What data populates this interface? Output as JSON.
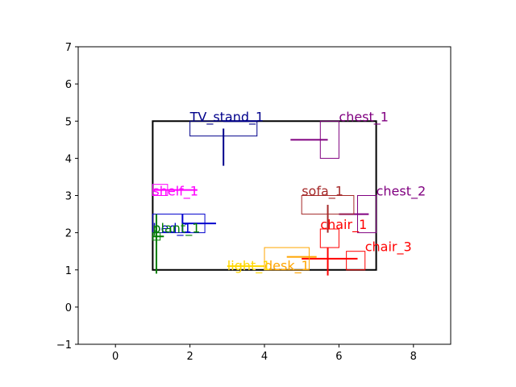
{
  "chart_data": {
    "type": "floor-plan",
    "title": "",
    "xlabel": "",
    "ylabel": "",
    "xlim": [
      -1,
      9
    ],
    "ylim": [
      -1,
      7
    ],
    "xticks": [
      0,
      2,
      4,
      6,
      8
    ],
    "yticks": [
      -1,
      0,
      1,
      2,
      3,
      4,
      5,
      6,
      7
    ],
    "grid": false,
    "room": {
      "x0": 1,
      "y0": 1,
      "x1": 7,
      "y1": 5,
      "color": "#000000"
    },
    "objects": [
      {
        "name": "TV_stand_1",
        "label": "TV_stand_1",
        "color": "#00008b",
        "rect": [
          2.0,
          4.6,
          3.8,
          5.0
        ],
        "hline": [
          2.9,
          3.8,
          5.0
        ],
        "vline": [
          2.9,
          3.8,
          4.8
        ],
        "label_xy": [
          2.0,
          5.0
        ]
      },
      {
        "name": "chest_1",
        "label": "chest_1",
        "color": "#800080",
        "rect": [
          5.5,
          4.0,
          6.0,
          5.0
        ],
        "hline": [
          4.7,
          5.7,
          4.5
        ],
        "vline": null,
        "label_xy": [
          6.0,
          5.0
        ]
      },
      {
        "name": "chest_2",
        "label": "chest_2",
        "color": "#800080",
        "rect": [
          6.5,
          2.0,
          7.0,
          3.0
        ],
        "hline": [
          6.0,
          6.8,
          2.5
        ],
        "vline": null,
        "label_xy": [
          7.0,
          3.0
        ]
      },
      {
        "name": "sofa_1",
        "label": "sofa_1",
        "color": "#a52a2a",
        "rect": [
          5.0,
          2.5,
          6.4,
          3.0
        ],
        "hline": null,
        "vline": [
          5.7,
          2.0,
          2.75
        ],
        "label_xy": [
          5.0,
          3.0
        ]
      },
      {
        "name": "shelf_1",
        "label": "shelf_1",
        "color": "#ff00ff",
        "rect": [
          1.0,
          3.0,
          1.4,
          3.3
        ],
        "hline": [
          1.0,
          2.2,
          3.15
        ],
        "vline": null,
        "label_xy": [
          1.0,
          3.0
        ]
      },
      {
        "name": "bed_1",
        "label": "bed_1",
        "color": "#0000cd",
        "rect": [
          1.0,
          2.0,
          2.4,
          2.5
        ],
        "hline": [
          1.8,
          2.7,
          2.25
        ],
        "vline": [
          1.8,
          2.0,
          2.5
        ],
        "label_xy": [
          1.0,
          2.0
        ]
      },
      {
        "name": "plant_1",
        "label": "plant_1",
        "color": "#008000",
        "rect": [
          1.0,
          1.8,
          1.2,
          2.0
        ],
        "hline": [
          1.0,
          1.3,
          1.9
        ],
        "vline": [
          1.1,
          0.9,
          2.5
        ],
        "label_xy": [
          1.0,
          2.0
        ]
      },
      {
        "name": "chair_1",
        "label": "chair_1",
        "color": "#ff0000",
        "rect": [
          5.5,
          1.6,
          6.0,
          2.1
        ],
        "hline": null,
        "vline": null,
        "label_xy": [
          5.5,
          2.1
        ]
      },
      {
        "name": "chair_3",
        "label": "chair_3",
        "color": "#ff0000",
        "rect": [
          6.2,
          1.0,
          6.7,
          1.5
        ],
        "hline": [
          5.0,
          6.5,
          1.3
        ],
        "vline": [
          5.7,
          0.85,
          1.6
        ],
        "label_xy": [
          6.7,
          1.5
        ]
      },
      {
        "name": "desk_1",
        "label": "desk_1",
        "color": "#ffa500",
        "rect": [
          4.0,
          1.0,
          5.2,
          1.6
        ],
        "hline": [
          4.6,
          5.4,
          1.35
        ],
        "vline": null,
        "label_xy": [
          4.0,
          1.0
        ]
      },
      {
        "name": "light_1",
        "label": "light_1",
        "color": "#ffd700",
        "rect": null,
        "hline": [
          3.0,
          4.0,
          1.1
        ],
        "vline": null,
        "label_xy": [
          3.0,
          1.0
        ]
      }
    ]
  }
}
